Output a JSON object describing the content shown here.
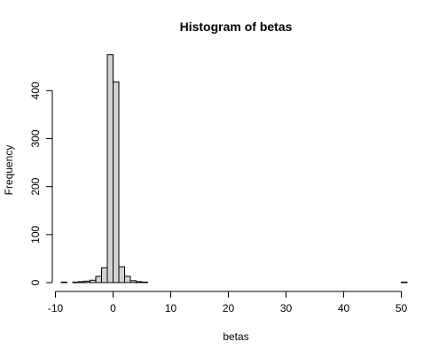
{
  "chart_data": {
    "type": "bar",
    "title": "Histogram of betas",
    "xlabel": "betas",
    "ylabel": "Frequency",
    "xlim": [
      -9,
      51
    ],
    "ylim": [
      0,
      480
    ],
    "x_ticks": [
      -10,
      0,
      10,
      20,
      30,
      40,
      50
    ],
    "y_ticks": [
      0,
      100,
      200,
      300,
      400
    ],
    "bins": [
      {
        "x0": -9,
        "x1": -8,
        "count": 1
      },
      {
        "x0": -8,
        "x1": -7,
        "count": 0
      },
      {
        "x0": -7,
        "x1": -6,
        "count": 1
      },
      {
        "x0": -6,
        "x1": -5,
        "count": 2
      },
      {
        "x0": -5,
        "x1": -4,
        "count": 3
      },
      {
        "x0": -4,
        "x1": -3,
        "count": 5
      },
      {
        "x0": -3,
        "x1": -2,
        "count": 13
      },
      {
        "x0": -2,
        "x1": -1,
        "count": 31
      },
      {
        "x0": -1,
        "x1": 0,
        "count": 475
      },
      {
        "x0": 0,
        "x1": 1,
        "count": 418
      },
      {
        "x0": 1,
        "x1": 2,
        "count": 33
      },
      {
        "x0": 2,
        "x1": 3,
        "count": 13
      },
      {
        "x0": 3,
        "x1": 4,
        "count": 4
      },
      {
        "x0": 4,
        "x1": 5,
        "count": 2
      },
      {
        "x0": 5,
        "x1": 6,
        "count": 1
      },
      {
        "x0": 50,
        "x1": 51,
        "count": 1
      }
    ]
  }
}
